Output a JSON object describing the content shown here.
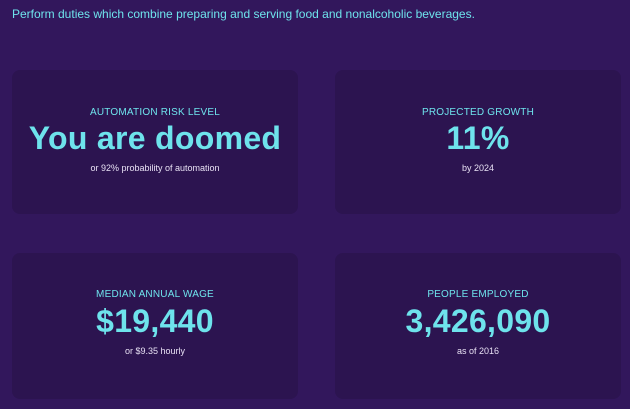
{
  "description": "Perform duties which combine preparing and serving food and nonalcoholic beverages.",
  "cards": [
    {
      "label": "AUTOMATION RISK LEVEL",
      "value": "You are doomed",
      "note": "or 92% probability of automation"
    },
    {
      "label": "PROJECTED GROWTH",
      "value": "11%",
      "note": "by 2024"
    },
    {
      "label": "MEDIAN ANNUAL WAGE",
      "value": "$19,440",
      "note": "or $9.35 hourly"
    },
    {
      "label": "PEOPLE EMPLOYED",
      "value": "3,426,090",
      "note": "as of 2016"
    }
  ],
  "colors": {
    "background": "#32175c",
    "card": "#2c1450",
    "accent": "#6ee3ec",
    "note": "#e8e1f4"
  }
}
